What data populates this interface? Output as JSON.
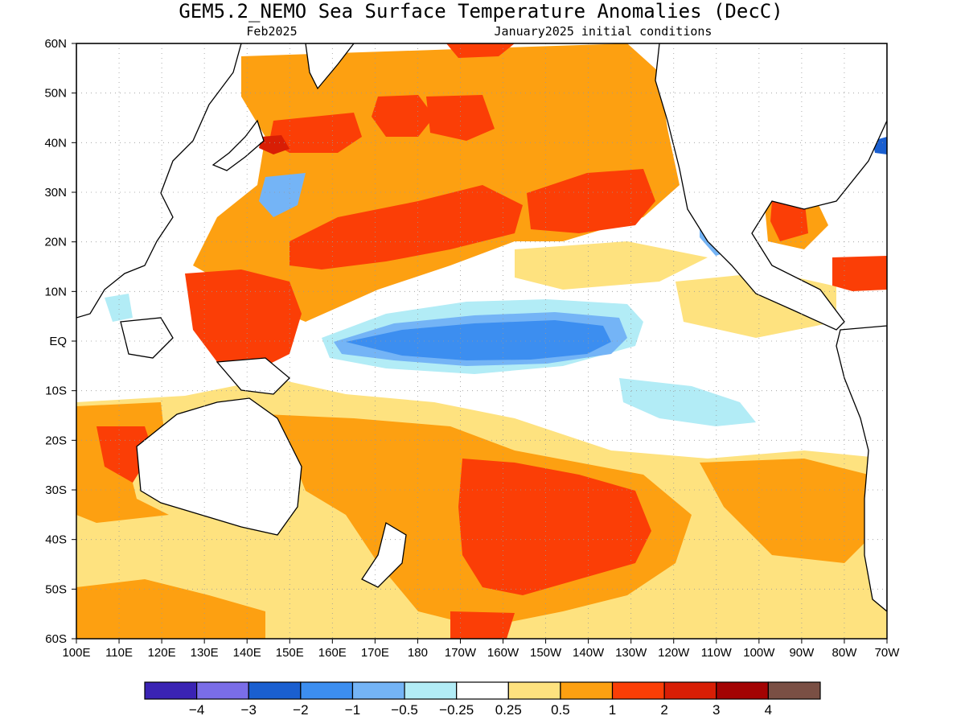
{
  "title": "GEM5.2_NEMO Sea Surface Temperature Anomalies (DecC)",
  "subtitle_left": "Feb2025",
  "subtitle_right": "January2025 initial conditions",
  "map": {
    "lat_labels": [
      "60N",
      "50N",
      "40N",
      "30N",
      "20N",
      "10N",
      "EQ",
      "10S",
      "20S",
      "30S",
      "40S",
      "50S",
      "60S"
    ],
    "lon_labels": [
      "100E",
      "110E",
      "120E",
      "130E",
      "140E",
      "150E",
      "160E",
      "170E",
      "180",
      "170W",
      "160W",
      "150W",
      "140W",
      "130W",
      "120W",
      "110W",
      "100W",
      "90W",
      "80W",
      "70W"
    ],
    "grid": true,
    "grid_style": "dotted"
  },
  "colorbar": {
    "colors": [
      "#3a23b4",
      "#7a6de8",
      "#1a5fd0",
      "#3c8ef0",
      "#74b4f6",
      "#b2ecf6",
      "#ffffff",
      "#fee27f",
      "#fda011",
      "#fb3e06",
      "#d81e05",
      "#a30303",
      "#7a4f44"
    ],
    "labels": [
      "−4",
      "−3",
      "−2",
      "−1",
      "−0.5",
      "−0.25",
      "0.25",
      "0.5",
      "1",
      "2",
      "3",
      "4"
    ]
  }
}
